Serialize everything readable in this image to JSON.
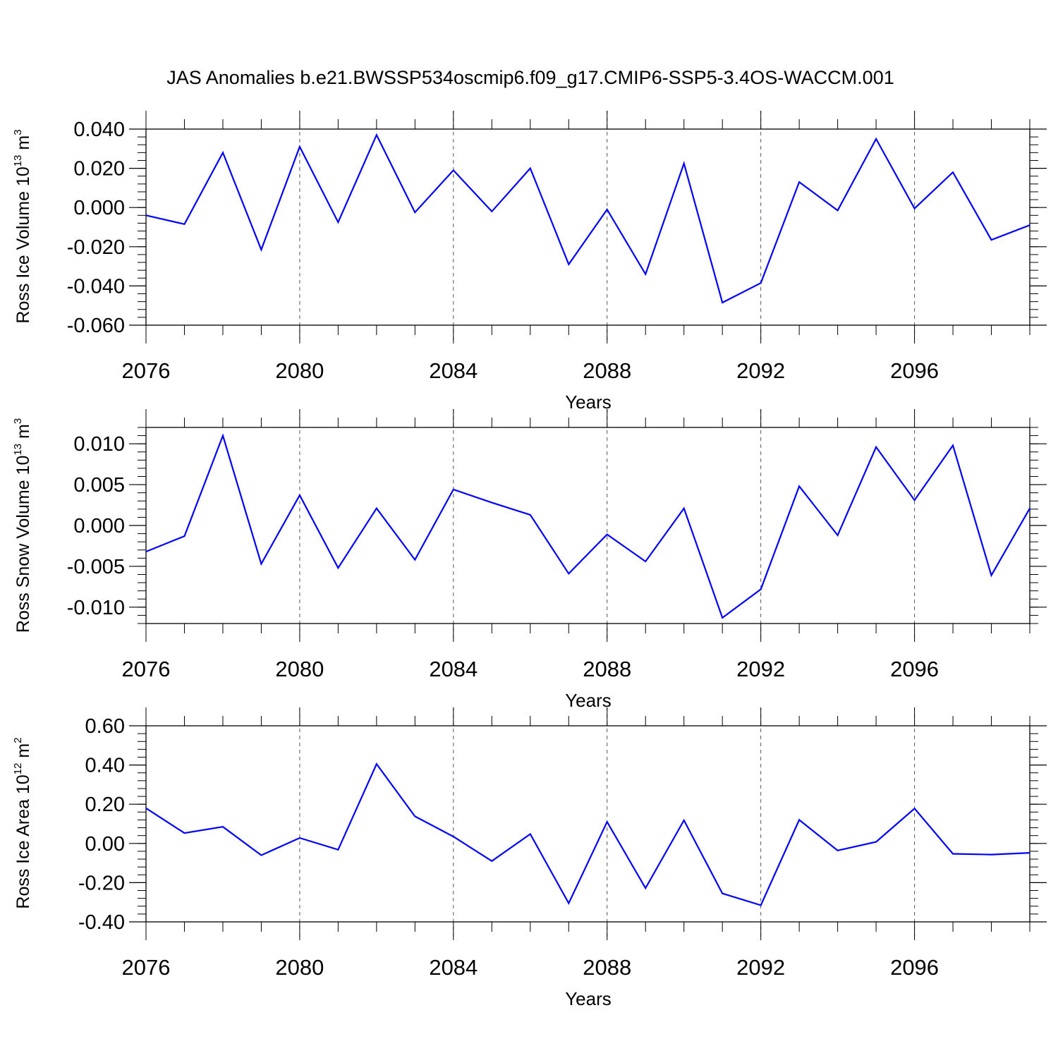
{
  "title": "JAS Anomalies b.e21.BWSSP534oscmip6.f09_g17.CMIP6-SSP5-3.4OS-WACCM.001",
  "chart_data": [
    {
      "type": "line",
      "xlabel": "Years",
      "ylabel": {
        "prefix": "Ross Ice Volume 10",
        "exp": "13",
        "unit": " m",
        "unit_exp": "3"
      },
      "xlim": [
        2076,
        2099
      ],
      "ylim": [
        -0.06,
        0.04
      ],
      "yticks": [
        0.04,
        0.02,
        0.0,
        -0.02,
        -0.04,
        -0.06
      ],
      "ytick_labels": [
        "0.040",
        "0.020",
        "0.000",
        "-0.020",
        "-0.040",
        "-0.060"
      ],
      "xticks": [
        2076,
        2080,
        2084,
        2088,
        2092,
        2096
      ],
      "xtick_labels": [
        "2076",
        "2080",
        "2084",
        "2088",
        "2092",
        "2096"
      ],
      "x": [
        2076,
        2077,
        2078,
        2079,
        2080,
        2081,
        2082,
        2083,
        2084,
        2085,
        2086,
        2087,
        2088,
        2089,
        2090,
        2091,
        2092,
        2093,
        2094,
        2095,
        2096,
        2097,
        2098,
        2099
      ],
      "values": [
        -0.004,
        -0.0085,
        0.028,
        -0.0215,
        0.031,
        -0.0075,
        0.037,
        -0.0025,
        0.019,
        -0.002,
        0.02,
        -0.029,
        -0.001,
        -0.034,
        0.0225,
        -0.0485,
        -0.0385,
        0.013,
        -0.0015,
        0.035,
        -0.0005,
        0.018,
        -0.0165,
        -0.009
      ],
      "color": "#0000ff"
    },
    {
      "type": "line",
      "xlabel": "Years",
      "ylabel": {
        "prefix": "Ross Snow Volume 10",
        "exp": "13",
        "unit": " m",
        "unit_exp": "3"
      },
      "xlim": [
        2076,
        2099
      ],
      "ylim": [
        -0.012,
        0.012
      ],
      "yticks": [
        0.01,
        0.005,
        0.0,
        -0.005,
        -0.01
      ],
      "ytick_labels": [
        "0.010",
        "0.005",
        "0.000",
        "-0.005",
        "-0.010"
      ],
      "xticks": [
        2076,
        2080,
        2084,
        2088,
        2092,
        2096
      ],
      "xtick_labels": [
        "2076",
        "2080",
        "2084",
        "2088",
        "2092",
        "2096"
      ],
      "x": [
        2076,
        2077,
        2078,
        2079,
        2080,
        2081,
        2082,
        2083,
        2084,
        2085,
        2086,
        2087,
        2088,
        2089,
        2090,
        2091,
        2092,
        2093,
        2094,
        2095,
        2096,
        2097,
        2098,
        2099
      ],
      "values": [
        -0.0032,
        -0.0013,
        0.011,
        -0.0047,
        0.0037,
        -0.0052,
        0.0021,
        -0.0042,
        0.0044,
        0.0028,
        0.0013,
        -0.0059,
        -0.0011,
        -0.0044,
        0.0021,
        -0.0113,
        -0.0078,
        0.0048,
        -0.0012,
        0.0096,
        0.0031,
        0.0098,
        -0.0061,
        0.0021
      ],
      "color": "#0000ff"
    },
    {
      "type": "line",
      "xlabel": "Years",
      "ylabel": {
        "prefix": "Ross Ice Area 10",
        "exp": "12",
        "unit": " m",
        "unit_exp": "2"
      },
      "xlim": [
        2076,
        2099
      ],
      "ylim": [
        -0.4,
        0.6
      ],
      "yticks": [
        0.6,
        0.4,
        0.2,
        0.0,
        -0.2,
        -0.4
      ],
      "ytick_labels": [
        "0.60",
        "0.40",
        "0.20",
        "0.00",
        "-0.20",
        "-0.40"
      ],
      "xticks": [
        2076,
        2080,
        2084,
        2088,
        2092,
        2096
      ],
      "xtick_labels": [
        "2076",
        "2080",
        "2084",
        "2088",
        "2092",
        "2096"
      ],
      "x": [
        2076,
        2077,
        2078,
        2079,
        2080,
        2081,
        2082,
        2083,
        2084,
        2085,
        2086,
        2087,
        2088,
        2089,
        2090,
        2091,
        2092,
        2093,
        2094,
        2095,
        2096,
        2097,
        2098,
        2099
      ],
      "values": [
        0.18,
        0.053,
        0.085,
        -0.06,
        0.028,
        -0.032,
        0.405,
        0.138,
        0.035,
        -0.09,
        0.048,
        -0.305,
        0.11,
        -0.228,
        0.118,
        -0.255,
        -0.315,
        0.12,
        -0.036,
        0.008,
        0.178,
        -0.053,
        -0.057,
        -0.048
      ],
      "color": "#0000ff"
    }
  ]
}
